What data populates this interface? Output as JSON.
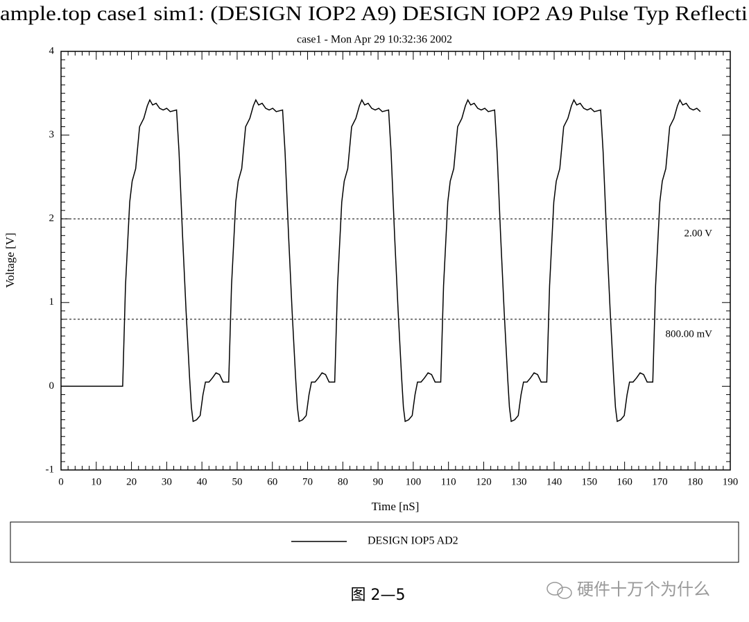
{
  "chart_data": {
    "type": "line",
    "title": "ample.top case1 sim1: (DESIGN IOP2 A9) DESIGN IOP2 A9 Pulse Typ Reflecti",
    "subtitle": "case1 - Mon Apr 29 10:32:36 2002",
    "x_label": "Time [nS]",
    "y_label": "Voltage [V]",
    "xlim": [
      0,
      190
    ],
    "ylim": [
      -1,
      4
    ],
    "xticks": [
      0,
      10,
      20,
      30,
      40,
      50,
      60,
      70,
      80,
      90,
      100,
      110,
      120,
      130,
      140,
      150,
      160,
      170,
      180,
      190
    ],
    "yticks": [
      -1,
      0,
      1,
      2,
      3,
      4
    ],
    "grid": false,
    "annotations": [
      {
        "value": 2,
        "label": "2.00 V"
      },
      {
        "value": 0.8,
        "label": "800.00 mV"
      }
    ],
    "x": [
      0,
      17.5,
      18.3,
      19.5,
      20.2,
      21.2,
      22.3,
      23.5,
      24.5,
      25.2,
      26,
      27,
      28,
      29,
      30,
      31,
      32.8,
      33.5,
      34.5,
      35.5,
      36.5,
      37,
      37.5,
      38.5,
      39.5,
      40.3,
      41,
      42,
      43,
      44,
      45,
      46,
      47,
      47.6,
      48.4,
      49.6,
      50.3,
      51.3,
      52.4,
      53.6,
      54.6,
      55.3,
      56.1,
      57.1,
      58.1,
      59.1,
      60.1,
      61.1,
      62.9,
      63.6,
      64.6,
      65.6,
      66.6,
      67.1,
      67.6,
      68.6,
      69.6,
      70.4,
      71.1,
      72.1,
      73.1,
      74.1,
      75.1,
      76.1,
      77.1,
      77.7,
      78.5,
      79.7,
      80.4,
      81.4,
      82.5,
      83.7,
      84.7,
      85.4,
      86.2,
      87.2,
      88.2,
      89.2,
      90.2,
      91.2,
      93,
      93.7,
      94.7,
      95.7,
      96.7,
      97.2,
      97.7,
      98.7,
      99.7,
      100.5,
      101.2,
      102.2,
      103.2,
      104.2,
      105.2,
      106.2,
      107.2,
      107.8,
      108.6,
      109.8,
      110.5,
      111.5,
      112.6,
      113.8,
      114.8,
      115.5,
      116.3,
      117.3,
      118.3,
      119.3,
      120.3,
      121.3,
      123.1,
      123.8,
      124.8,
      125.8,
      126.8,
      127.3,
      127.8,
      128.8,
      129.8,
      130.6,
      131.3,
      132.3,
      133.3,
      134.3,
      135.3,
      136.3,
      137.3,
      137.9,
      138.7,
      139.9,
      140.6,
      141.6,
      142.7,
      143.9,
      144.9,
      145.6,
      146.4,
      147.4,
      148.4,
      149.4,
      150.4,
      151.4,
      153.2,
      153.9,
      154.9,
      155.9,
      156.9,
      157.4,
      157.9,
      158.9,
      159.9,
      160.7,
      161.4,
      162.4,
      163.4,
      164.4,
      165.4,
      166.4,
      167.4,
      168,
      168.8,
      170,
      170.7,
      171.7,
      172.8,
      174,
      175,
      175.7,
      176.5,
      177.5,
      178.5,
      179.5,
      180.5,
      181.5
    ],
    "series": [
      {
        "name": "DESIGN IOP5 AD2",
        "color": "#000000",
        "values": [
          0,
          0,
          1.2,
          2.2,
          2.45,
          2.6,
          3.1,
          3.2,
          3.35,
          3.42,
          3.36,
          3.38,
          3.32,
          3.3,
          3.32,
          3.28,
          3.3,
          2.8,
          1.8,
          0.9,
          0.1,
          -0.25,
          -0.42,
          -0.4,
          -0.35,
          -0.1,
          0.05,
          0.05,
          0.1,
          0.16,
          0.14,
          0.05,
          0.05,
          0.05,
          1.2,
          2.2,
          2.45,
          2.6,
          3.1,
          3.2,
          3.35,
          3.42,
          3.36,
          3.38,
          3.32,
          3.3,
          3.32,
          3.28,
          3.3,
          2.8,
          1.8,
          0.9,
          0.1,
          -0.25,
          -0.42,
          -0.4,
          -0.35,
          -0.1,
          0.05,
          0.05,
          0.1,
          0.16,
          0.14,
          0.05,
          0.05,
          0.05,
          1.2,
          2.2,
          2.45,
          2.6,
          3.1,
          3.2,
          3.35,
          3.42,
          3.36,
          3.38,
          3.32,
          3.3,
          3.32,
          3.28,
          3.3,
          2.8,
          1.8,
          0.9,
          0.1,
          -0.25,
          -0.42,
          -0.4,
          -0.35,
          -0.1,
          0.05,
          0.05,
          0.1,
          0.16,
          0.14,
          0.05,
          0.05,
          0.05,
          1.2,
          2.2,
          2.45,
          2.6,
          3.1,
          3.2,
          3.35,
          3.42,
          3.36,
          3.38,
          3.32,
          3.3,
          3.32,
          3.28,
          3.3,
          2.8,
          1.8,
          0.9,
          0.1,
          -0.25,
          -0.42,
          -0.4,
          -0.35,
          -0.1,
          0.05,
          0.05,
          0.1,
          0.16,
          0.14,
          0.05,
          0.05,
          0.05,
          1.2,
          2.2,
          2.45,
          2.6,
          3.1,
          3.2,
          3.35,
          3.42,
          3.36,
          3.38,
          3.32,
          3.3,
          3.32,
          3.28,
          3.3,
          2.8,
          1.8,
          0.9,
          0.1,
          -0.25,
          -0.42,
          -0.4,
          -0.35,
          -0.1,
          0.05,
          0.05,
          0.1,
          0.16,
          0.14,
          0.05,
          0.05,
          0.05,
          1.2,
          2.2,
          2.45,
          2.6,
          3.1,
          3.2,
          3.35,
          3.42,
          3.36,
          3.38,
          3.32,
          3.3,
          3.32,
          3.28
        ]
      }
    ],
    "caption": "图 2—5",
    "watermark": "硬件十万个为什么"
  }
}
